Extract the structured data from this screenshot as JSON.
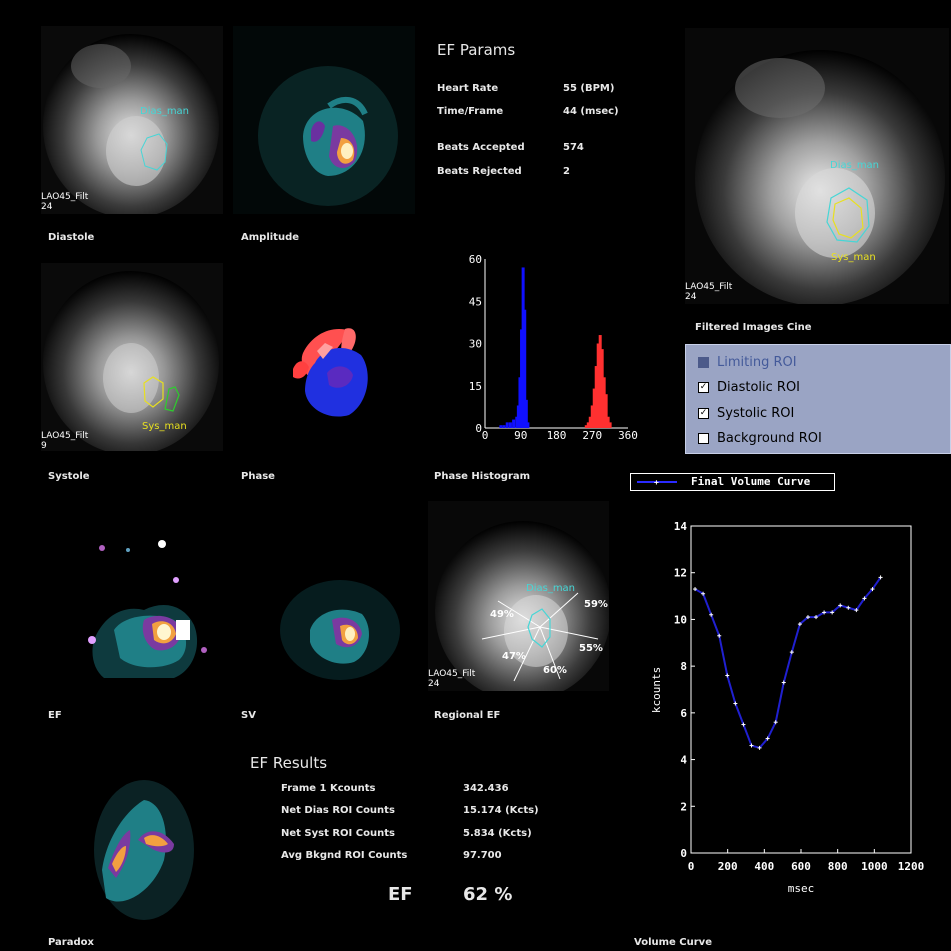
{
  "colors": {
    "roi_dias": "#46d6d6",
    "roi_sys": "#e8e020",
    "roi_bg": "#2ecc2e",
    "hist_blue": "#1010ff",
    "hist_red": "#ff3030",
    "curve": "#2020d0"
  },
  "panels": {
    "diastole": {
      "label": "Diastole",
      "caption_line1": "LAO45_Filt",
      "caption_line2": "24",
      "roi_label": "Dias_man"
    },
    "amplitude": {
      "label": "Amplitude"
    },
    "systole": {
      "label": "Systole",
      "caption_line1": "LAO45_Filt",
      "caption_line2": "9",
      "roi_label": "Sys_man"
    },
    "phase": {
      "label": "Phase"
    },
    "phase_histogram": {
      "label": "Phase Histogram"
    },
    "ef": {
      "label": "EF"
    },
    "sv": {
      "label": "SV"
    },
    "regional_ef": {
      "label": "Regional EF",
      "caption_line1": "LAO45_Filt",
      "caption_line2": "24",
      "roi_label": "Dias_man",
      "sectors": [
        "49%",
        "59%",
        "55%",
        "60%",
        "47%"
      ]
    },
    "paradox": {
      "label": "Paradox"
    },
    "filtered_cine": {
      "label": "Filtered Images Cine",
      "caption_line1": "LAO45_Filt",
      "caption_line2": "24",
      "roi_dias": "Dias_man",
      "roi_sys": "Sys_man"
    },
    "volume_curve": {
      "label": "Volume Curve"
    }
  },
  "ef_params": {
    "title": "EF Params",
    "rows": [
      {
        "label": "Heart Rate",
        "value": "55  (BPM)"
      },
      {
        "label": "Time/Frame",
        "value": "44  (msec)"
      },
      {
        "label": "Beats Accepted",
        "value": "574"
      },
      {
        "label": "Beats Rejected",
        "value": "2"
      }
    ]
  },
  "roi_options": [
    {
      "label": "Limiting ROI",
      "checked": false,
      "disabled": true
    },
    {
      "label": "Diastolic ROI",
      "checked": true,
      "disabled": false
    },
    {
      "label": "Systolic ROI",
      "checked": true,
      "disabled": false
    },
    {
      "label": "Background ROI",
      "checked": false,
      "disabled": false
    }
  ],
  "ef_results": {
    "title": "EF Results",
    "rows": [
      {
        "label": "Frame 1 Kcounts",
        "value": "342.436"
      },
      {
        "label": "Net Dias ROI Counts",
        "value": "15.174 (Kcts)"
      },
      {
        "label": "Net Syst ROI Counts",
        "value": "5.834 (Kcts)"
      },
      {
        "label": "Avg Bkgnd ROI Counts",
        "value": "97.700"
      }
    ],
    "ef_label": "EF",
    "ef_value": "62 %"
  },
  "chart_data": [
    {
      "type": "bar",
      "title": "Phase Histogram",
      "xlabel": "",
      "ylabel": "",
      "xlim": [
        0,
        360
      ],
      "ylim": [
        0,
        60
      ],
      "xticks": [
        "0",
        "90",
        "180",
        "270",
        "360"
      ],
      "yticks": [
        "60",
        "45",
        "30",
        "15",
        "0"
      ],
      "series": [
        {
          "color": "blue",
          "x": [
            40,
            48,
            56,
            64,
            72,
            80,
            84,
            88,
            92,
            96,
            100,
            104,
            108
          ],
          "values": [
            1,
            1,
            2,
            2,
            3,
            4,
            8,
            18,
            35,
            57,
            42,
            10,
            2
          ]
        },
        {
          "color": "red",
          "x": [
            255,
            260,
            265,
            270,
            275,
            280,
            285,
            290,
            295,
            300,
            305,
            310,
            315
          ],
          "values": [
            1,
            2,
            4,
            8,
            14,
            22,
            30,
            33,
            28,
            18,
            12,
            4,
            2
          ]
        }
      ]
    },
    {
      "type": "line",
      "title": "",
      "xlabel": "msec",
      "ylabel": "kcounts",
      "xlim": [
        0,
        1200
      ],
      "ylim": [
        0,
        14
      ],
      "xticks": [
        "0",
        "200",
        "400",
        "600",
        "800",
        "1000",
        "1200"
      ],
      "yticks": [
        "0",
        "2",
        "4",
        "6",
        "8",
        "10",
        "12",
        "14"
      ],
      "series": [
        {
          "name": "Final Volume Curve",
          "x": [
            22,
            66,
            110,
            154,
            198,
            242,
            286,
            330,
            374,
            418,
            462,
            506,
            550,
            594,
            638,
            682,
            726,
            770,
            814,
            858,
            902,
            946,
            990,
            1034
          ],
          "values": [
            11.3,
            11.1,
            10.2,
            9.3,
            7.6,
            6.4,
            5.5,
            4.6,
            4.5,
            4.9,
            5.6,
            7.3,
            8.6,
            9.8,
            10.1,
            10.1,
            10.3,
            10.3,
            10.6,
            10.5,
            10.4,
            10.9,
            11.3,
            11.8
          ]
        }
      ]
    }
  ]
}
